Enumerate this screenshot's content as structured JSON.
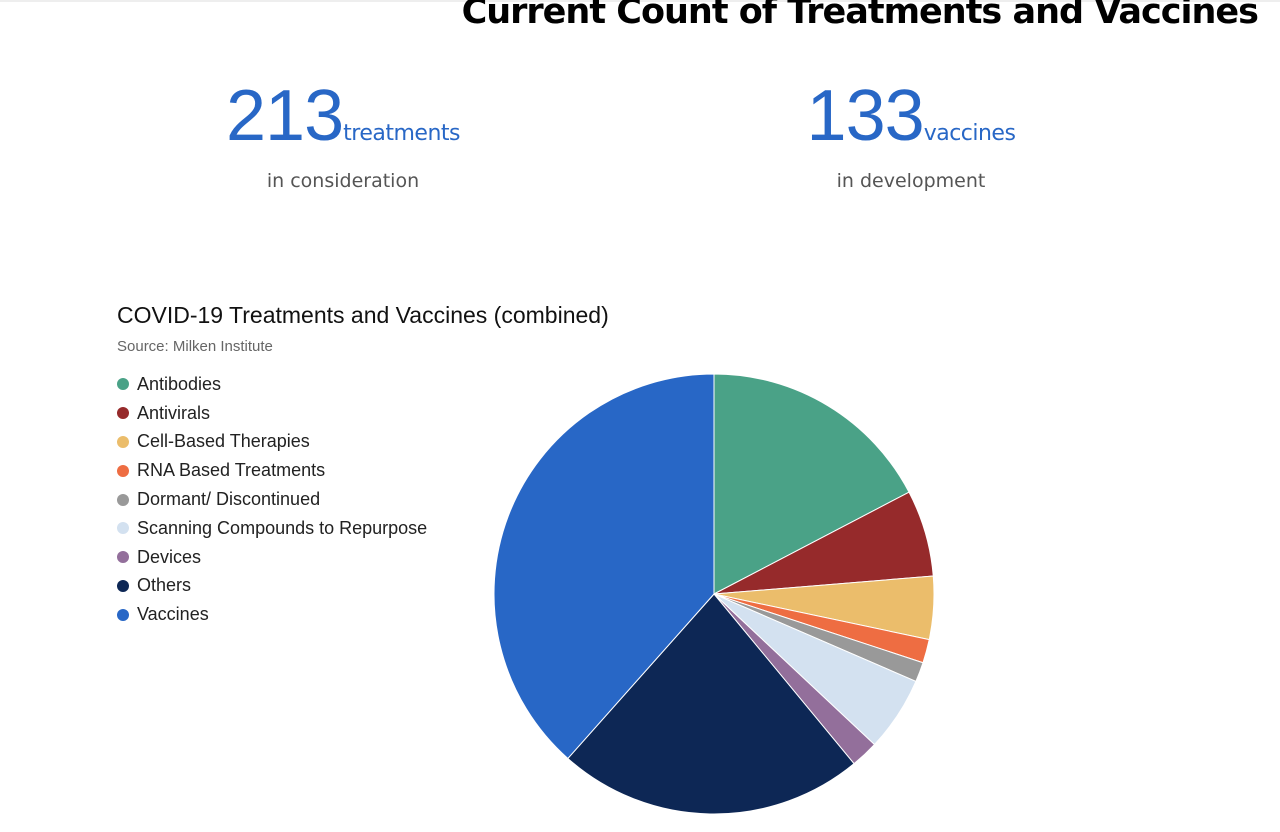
{
  "header": {
    "title": "Current Count of Treatments and Vaccines"
  },
  "stats": {
    "treatments": {
      "number": "213",
      "unit": "treatments",
      "caption": "in consideration"
    },
    "vaccines": {
      "number": "133",
      "unit": "vaccines",
      "caption": "in development"
    }
  },
  "chart_data": {
    "type": "pie",
    "title": "COVID-19 Treatments and Vaccines (combined)",
    "subtitle": "Source: Milken Institute",
    "legend_position": "left",
    "slices": [
      {
        "label": "Antibodies",
        "value": 60,
        "color": "#4aa287"
      },
      {
        "label": "Antivirals",
        "value": 22,
        "color": "#962a2b"
      },
      {
        "label": "Cell-Based Therapies",
        "value": 16,
        "color": "#ebbd6b"
      },
      {
        "label": "RNA Based Treatments",
        "value": 6,
        "color": "#ee6d42"
      },
      {
        "label": "Dormant/ Discontinued",
        "value": 5,
        "color": "#999999"
      },
      {
        "label": "Scanning Compounds to Repurpose",
        "value": 19,
        "color": "#d3e1f0"
      },
      {
        "label": "Devices",
        "value": 7,
        "color": "#936f9b"
      },
      {
        "label": "Others",
        "value": 78,
        "color": "#0d2755"
      },
      {
        "label": "Vaccines",
        "value": 133,
        "color": "#2867c6"
      }
    ]
  }
}
